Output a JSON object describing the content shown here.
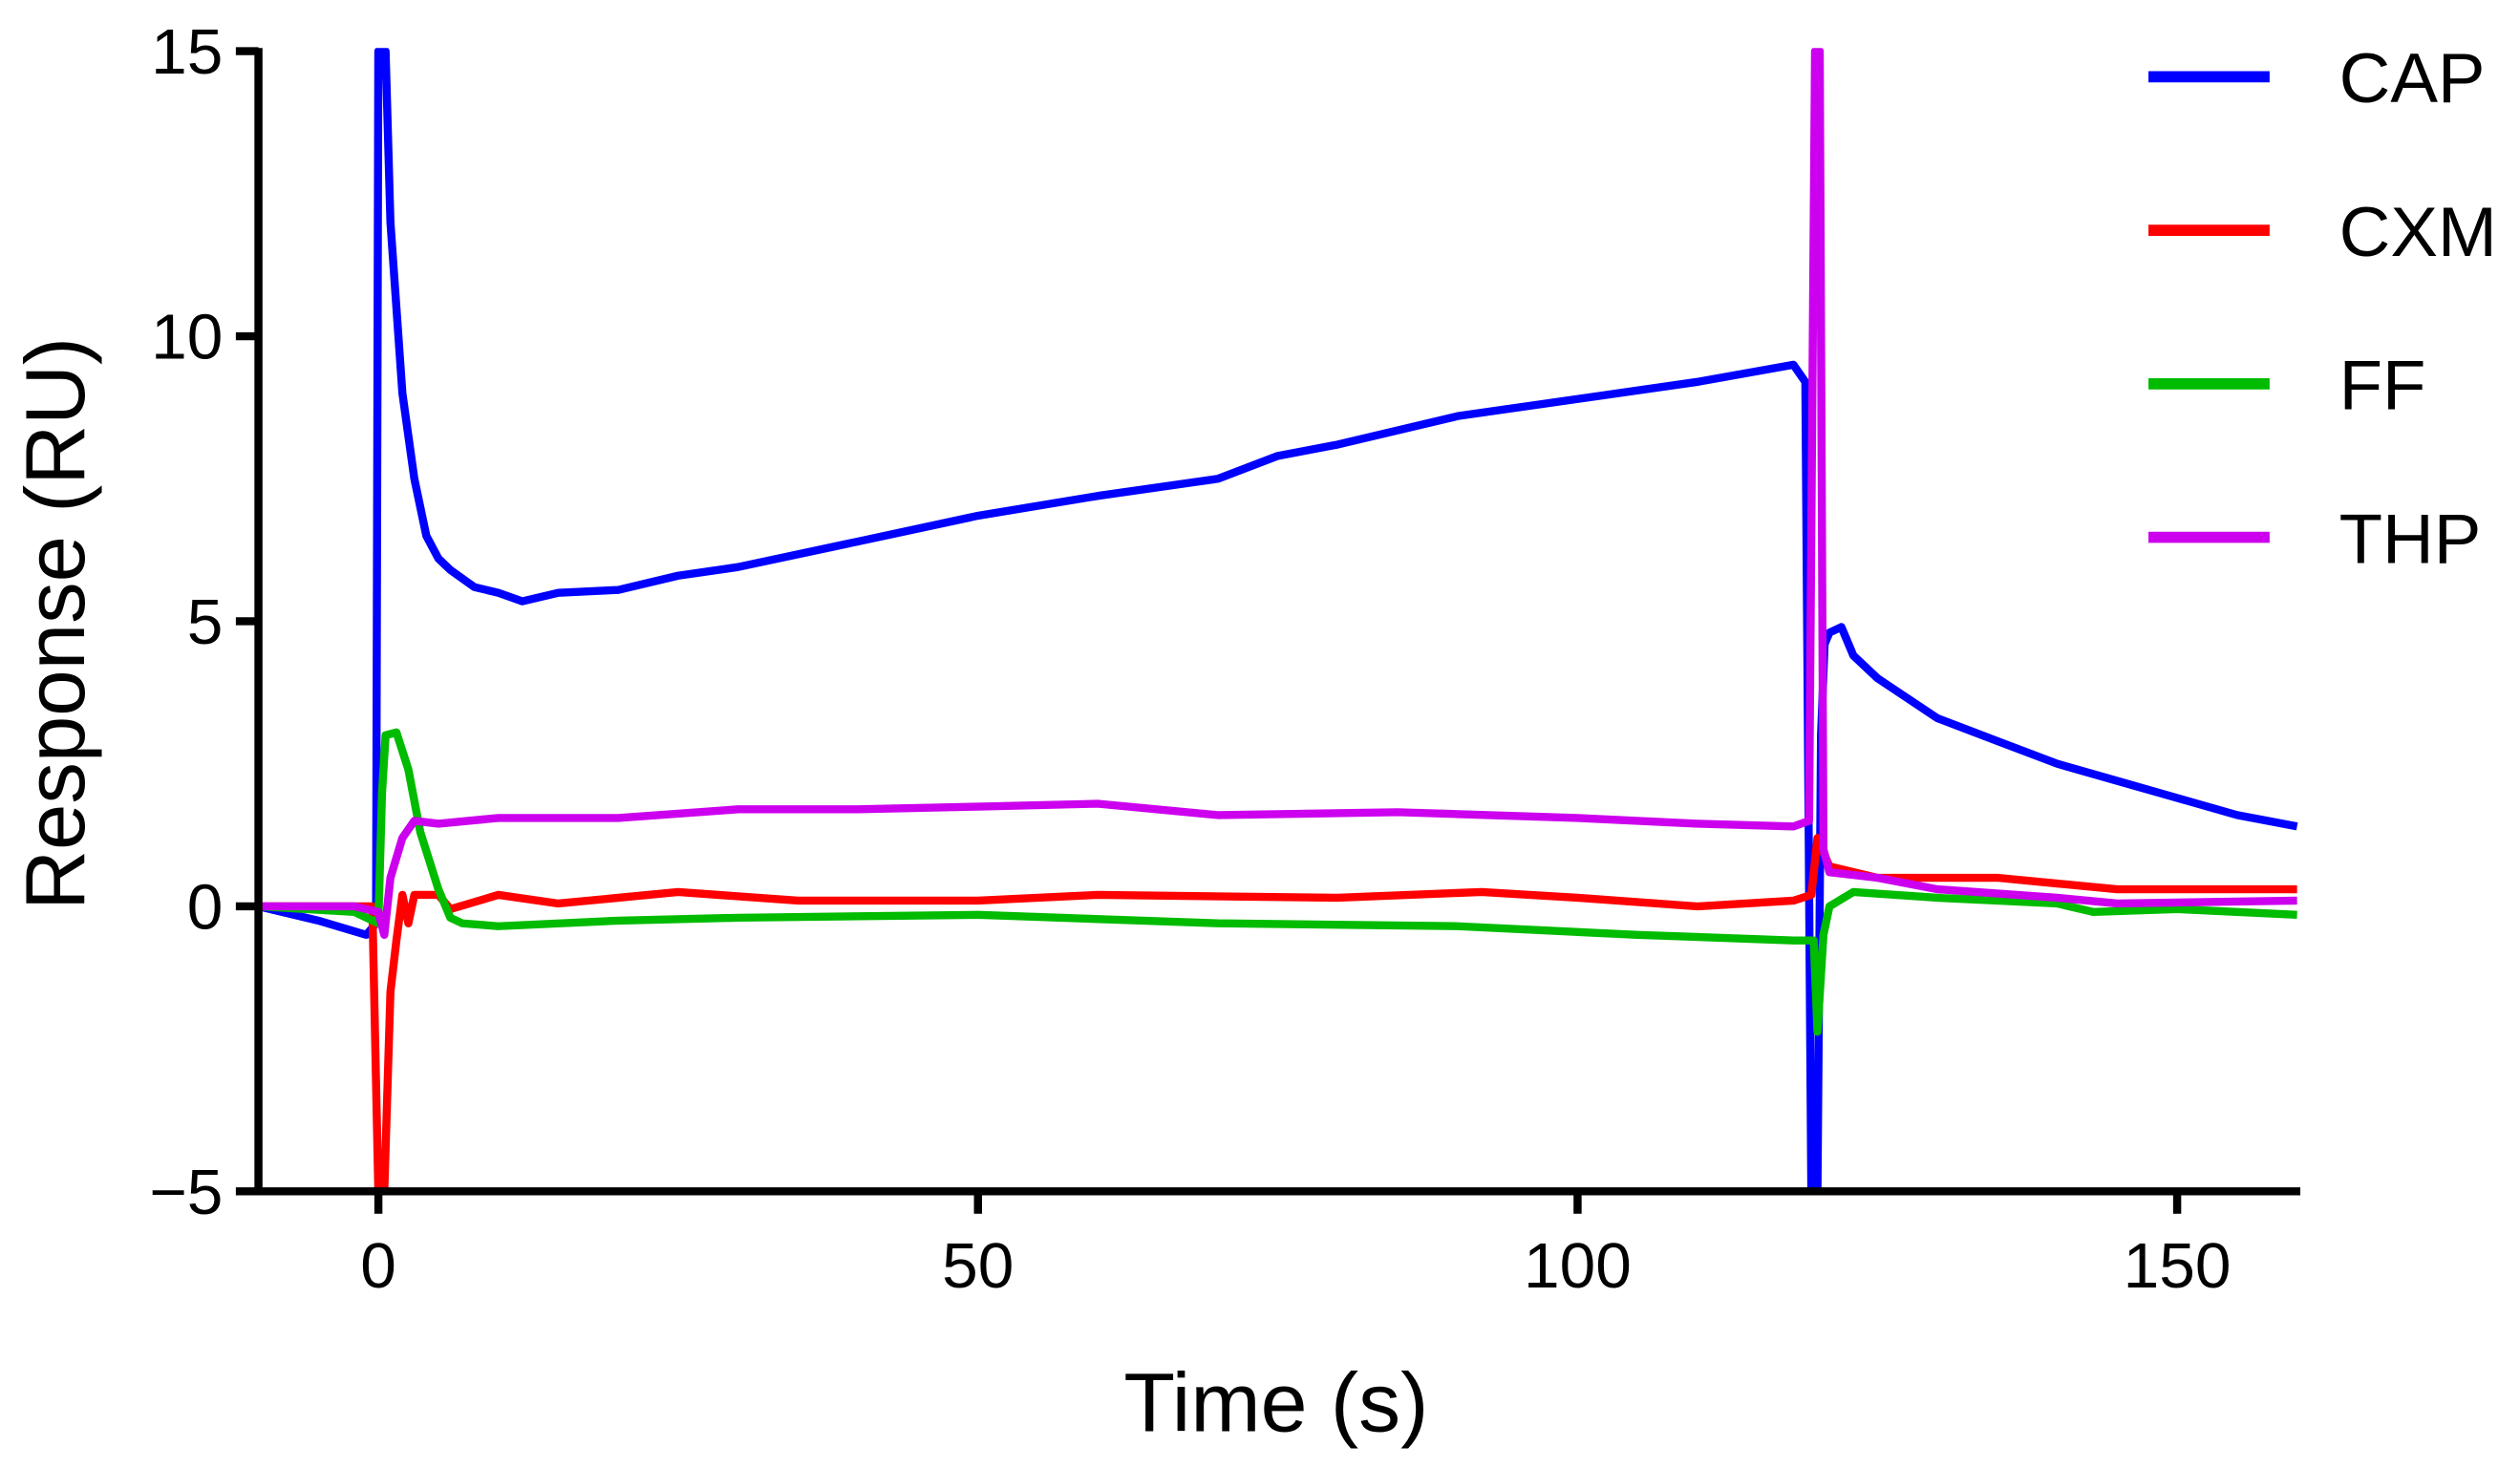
{
  "chart_data": {
    "type": "line",
    "title": "",
    "xlabel": "Time (s)",
    "ylabel": "Response (RU)",
    "xlim": [
      -10,
      160
    ],
    "ylim": [
      -5,
      15
    ],
    "xticks": [
      0,
      50,
      100,
      150
    ],
    "yticks": [
      -5,
      0,
      5,
      10,
      15
    ],
    "xtick_labels": [
      "0",
      "50",
      "100",
      "150"
    ],
    "ytick_labels": [
      "−5",
      "0",
      "5",
      "10",
      "15"
    ],
    "grid": false,
    "legend_placement": "top-right",
    "series": [
      {
        "name": "CAP",
        "color": "#0000ff",
        "points": [
          [
            -10,
            0
          ],
          [
            -5,
            -0.25
          ],
          [
            -1,
            -0.5
          ],
          [
            -0.2,
            -0.3
          ],
          [
            0,
            15
          ],
          [
            0.6,
            15
          ],
          [
            1,
            12
          ],
          [
            2,
            9
          ],
          [
            3,
            7.5
          ],
          [
            4,
            6.5
          ],
          [
            5,
            6.1
          ],
          [
            6,
            5.9
          ],
          [
            8,
            5.6
          ],
          [
            10,
            5.5
          ],
          [
            12,
            5.35
          ],
          [
            15,
            5.5
          ],
          [
            20,
            5.55
          ],
          [
            25,
            5.8
          ],
          [
            30,
            5.95
          ],
          [
            40,
            6.4
          ],
          [
            50,
            6.85
          ],
          [
            60,
            7.2
          ],
          [
            70,
            7.5
          ],
          [
            75,
            7.9
          ],
          [
            80,
            8.1
          ],
          [
            90,
            8.6
          ],
          [
            100,
            8.9
          ],
          [
            110,
            9.2
          ],
          [
            118,
            9.5
          ],
          [
            119,
            9.2
          ],
          [
            119.5,
            -5
          ],
          [
            120,
            -5
          ],
          [
            120.3,
            3
          ],
          [
            120.6,
            4.6
          ],
          [
            121,
            4.8
          ],
          [
            122,
            4.9
          ],
          [
            123,
            4.4
          ],
          [
            125,
            4.0
          ],
          [
            130,
            3.3
          ],
          [
            135,
            2.9
          ],
          [
            140,
            2.5
          ],
          [
            145,
            2.2
          ],
          [
            150,
            1.9
          ],
          [
            155,
            1.6
          ],
          [
            160,
            1.4
          ]
        ]
      },
      {
        "name": "CXM",
        "color": "#ff0000",
        "points": [
          [
            -10,
            0
          ],
          [
            -2,
            0
          ],
          [
            -0.5,
            0
          ],
          [
            0,
            -5
          ],
          [
            0.5,
            -5
          ],
          [
            1,
            -1.5
          ],
          [
            1.5,
            -0.6
          ],
          [
            2,
            0.2
          ],
          [
            2.5,
            -0.3
          ],
          [
            3,
            0.2
          ],
          [
            4,
            0.2
          ],
          [
            5,
            0.2
          ],
          [
            6,
            -0.05
          ],
          [
            10,
            0.2
          ],
          [
            15,
            0.05
          ],
          [
            25,
            0.25
          ],
          [
            35,
            0.1
          ],
          [
            50,
            0.1
          ],
          [
            60,
            0.2
          ],
          [
            80,
            0.15
          ],
          [
            92,
            0.25
          ],
          [
            100,
            0.15
          ],
          [
            110,
            0
          ],
          [
            118,
            0.1
          ],
          [
            119.5,
            0.2
          ],
          [
            120,
            1.2
          ],
          [
            121,
            0.7
          ],
          [
            125,
            0.5
          ],
          [
            135,
            0.5
          ],
          [
            140,
            0.4
          ],
          [
            145,
            0.3
          ],
          [
            160,
            0.3
          ]
        ]
      },
      {
        "name": "FF",
        "color": "#00bb00",
        "points": [
          [
            -10,
            0
          ],
          [
            -2,
            -0.1
          ],
          [
            0,
            -0.3
          ],
          [
            0.3,
            2
          ],
          [
            0.6,
            3.0
          ],
          [
            1.5,
            3.05
          ],
          [
            2.5,
            2.4
          ],
          [
            3.5,
            1.3
          ],
          [
            5,
            0.3
          ],
          [
            6,
            -0.2
          ],
          [
            7,
            -0.3
          ],
          [
            10,
            -0.35
          ],
          [
            20,
            -0.25
          ],
          [
            30,
            -0.2
          ],
          [
            50,
            -0.15
          ],
          [
            70,
            -0.3
          ],
          [
            90,
            -0.35
          ],
          [
            105,
            -0.5
          ],
          [
            118,
            -0.6
          ],
          [
            119.7,
            -0.6
          ],
          [
            120,
            -2.2
          ],
          [
            120.5,
            -0.5
          ],
          [
            121,
            0
          ],
          [
            123,
            0.25
          ],
          [
            130,
            0.15
          ],
          [
            135,
            0.1
          ],
          [
            140,
            0.05
          ],
          [
            143,
            -0.1
          ],
          [
            150,
            -0.05
          ],
          [
            160,
            -0.15
          ]
        ]
      },
      {
        "name": "THP",
        "color": "#cc00ee",
        "points": [
          [
            -10,
            0
          ],
          [
            -2,
            0
          ],
          [
            0,
            -0.1
          ],
          [
            0.5,
            -0.5
          ],
          [
            1,
            0.5
          ],
          [
            2,
            1.2
          ],
          [
            3,
            1.5
          ],
          [
            5,
            1.45
          ],
          [
            10,
            1.55
          ],
          [
            20,
            1.55
          ],
          [
            30,
            1.7
          ],
          [
            40,
            1.7
          ],
          [
            50,
            1.75
          ],
          [
            60,
            1.8
          ],
          [
            70,
            1.6
          ],
          [
            85,
            1.65
          ],
          [
            100,
            1.55
          ],
          [
            110,
            1.45
          ],
          [
            118,
            1.4
          ],
          [
            119.3,
            1.5
          ],
          [
            119.8,
            15
          ],
          [
            120.2,
            15
          ],
          [
            120.5,
            1.0
          ],
          [
            121,
            0.6
          ],
          [
            125,
            0.5
          ],
          [
            130,
            0.3
          ],
          [
            140,
            0.15
          ],
          [
            145,
            0.05
          ],
          [
            160,
            0.1
          ]
        ]
      }
    ]
  }
}
